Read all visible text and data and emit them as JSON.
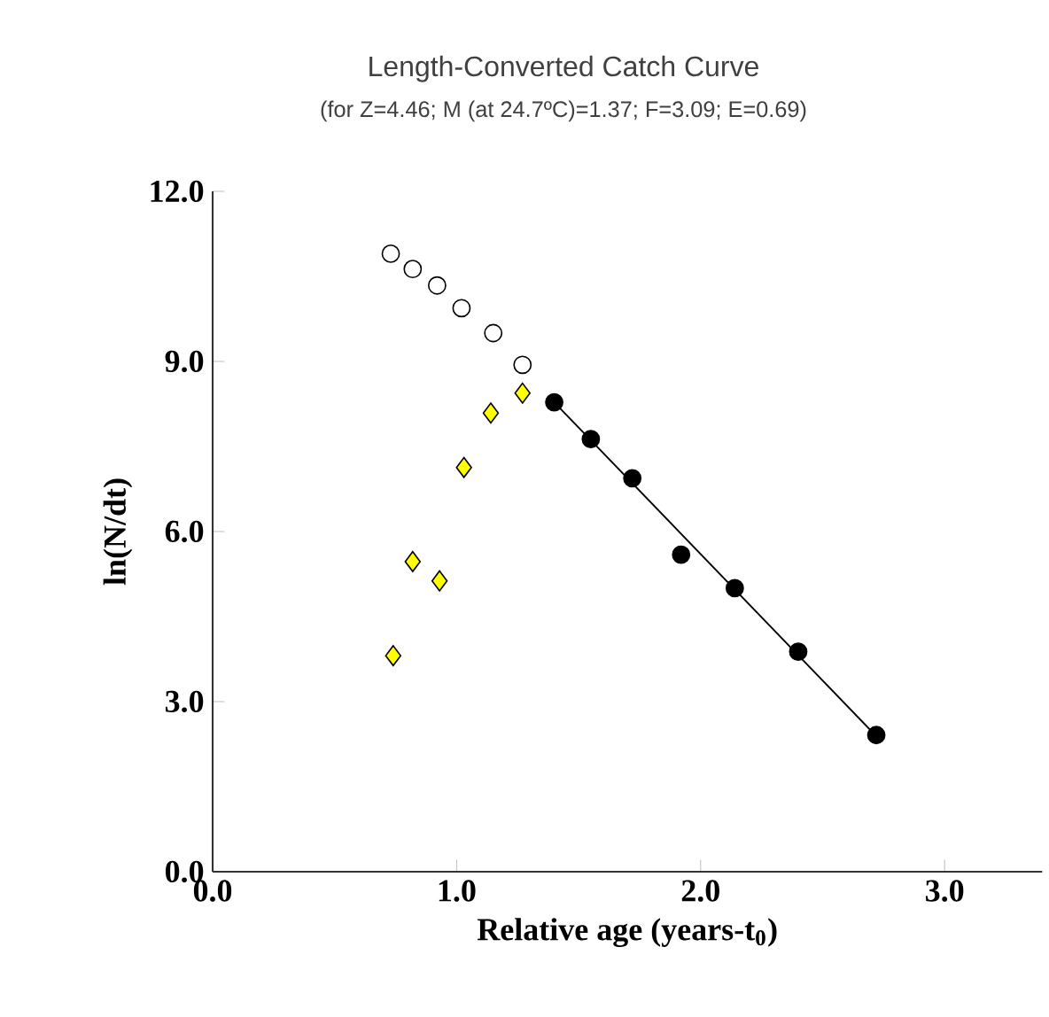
{
  "chart_data": {
    "type": "scatter",
    "title": "Length-Converted Catch Curve",
    "subtitle": "(for Z=4.46; M (at 24.7ºC)=1.37; F=3.09; E=0.69)",
    "xlabel": "Relative age (years-t$_{0}$)",
    "ylabel": "ln(N/dt)",
    "xlim": [
      0,
      3.4
    ],
    "ylim": [
      0,
      12
    ],
    "xticks": [
      {
        "value": 0,
        "label": "0.0"
      },
      {
        "value": 1,
        "label": "1.0"
      },
      {
        "value": 2,
        "label": "2.0"
      },
      {
        "value": 3,
        "label": "3.0"
      }
    ],
    "yticks": [
      {
        "value": 0,
        "label": "0.0"
      },
      {
        "value": 3,
        "label": "3.0"
      },
      {
        "value": 6,
        "label": "6.0"
      },
      {
        "value": 9,
        "label": "9.0"
      },
      {
        "value": 12,
        "label": "12.0"
      }
    ],
    "grid": false,
    "series": [
      {
        "type": "scatter",
        "marker": "circle",
        "color": "#ffffff",
        "x": [
          0.73,
          0.82,
          0.92,
          1.02,
          1.15,
          1.27
        ],
        "values": [
          10.9,
          10.63,
          10.34,
          9.94,
          9.5,
          8.94
        ]
      },
      {
        "type": "scatter",
        "marker": "diamond",
        "color": "#ffff00",
        "x": [
          0.74,
          0.82,
          0.93,
          1.03,
          1.14,
          1.27
        ],
        "values": [
          3.81,
          5.47,
          5.13,
          7.13,
          8.09,
          8.44
        ]
      },
      {
        "type": "line",
        "marker": "none",
        "color": "#000000",
        "x": [
          1.4,
          2.72
        ],
        "values": [
          8.28,
          2.39
        ]
      },
      {
        "type": "scatter",
        "marker": "circle",
        "color": "#000000",
        "x": [
          1.4,
          1.55,
          1.72,
          1.92,
          2.14,
          2.4,
          2.72
        ],
        "values": [
          8.28,
          7.63,
          6.94,
          5.59,
          5.0,
          3.88,
          2.41
        ]
      }
    ]
  }
}
